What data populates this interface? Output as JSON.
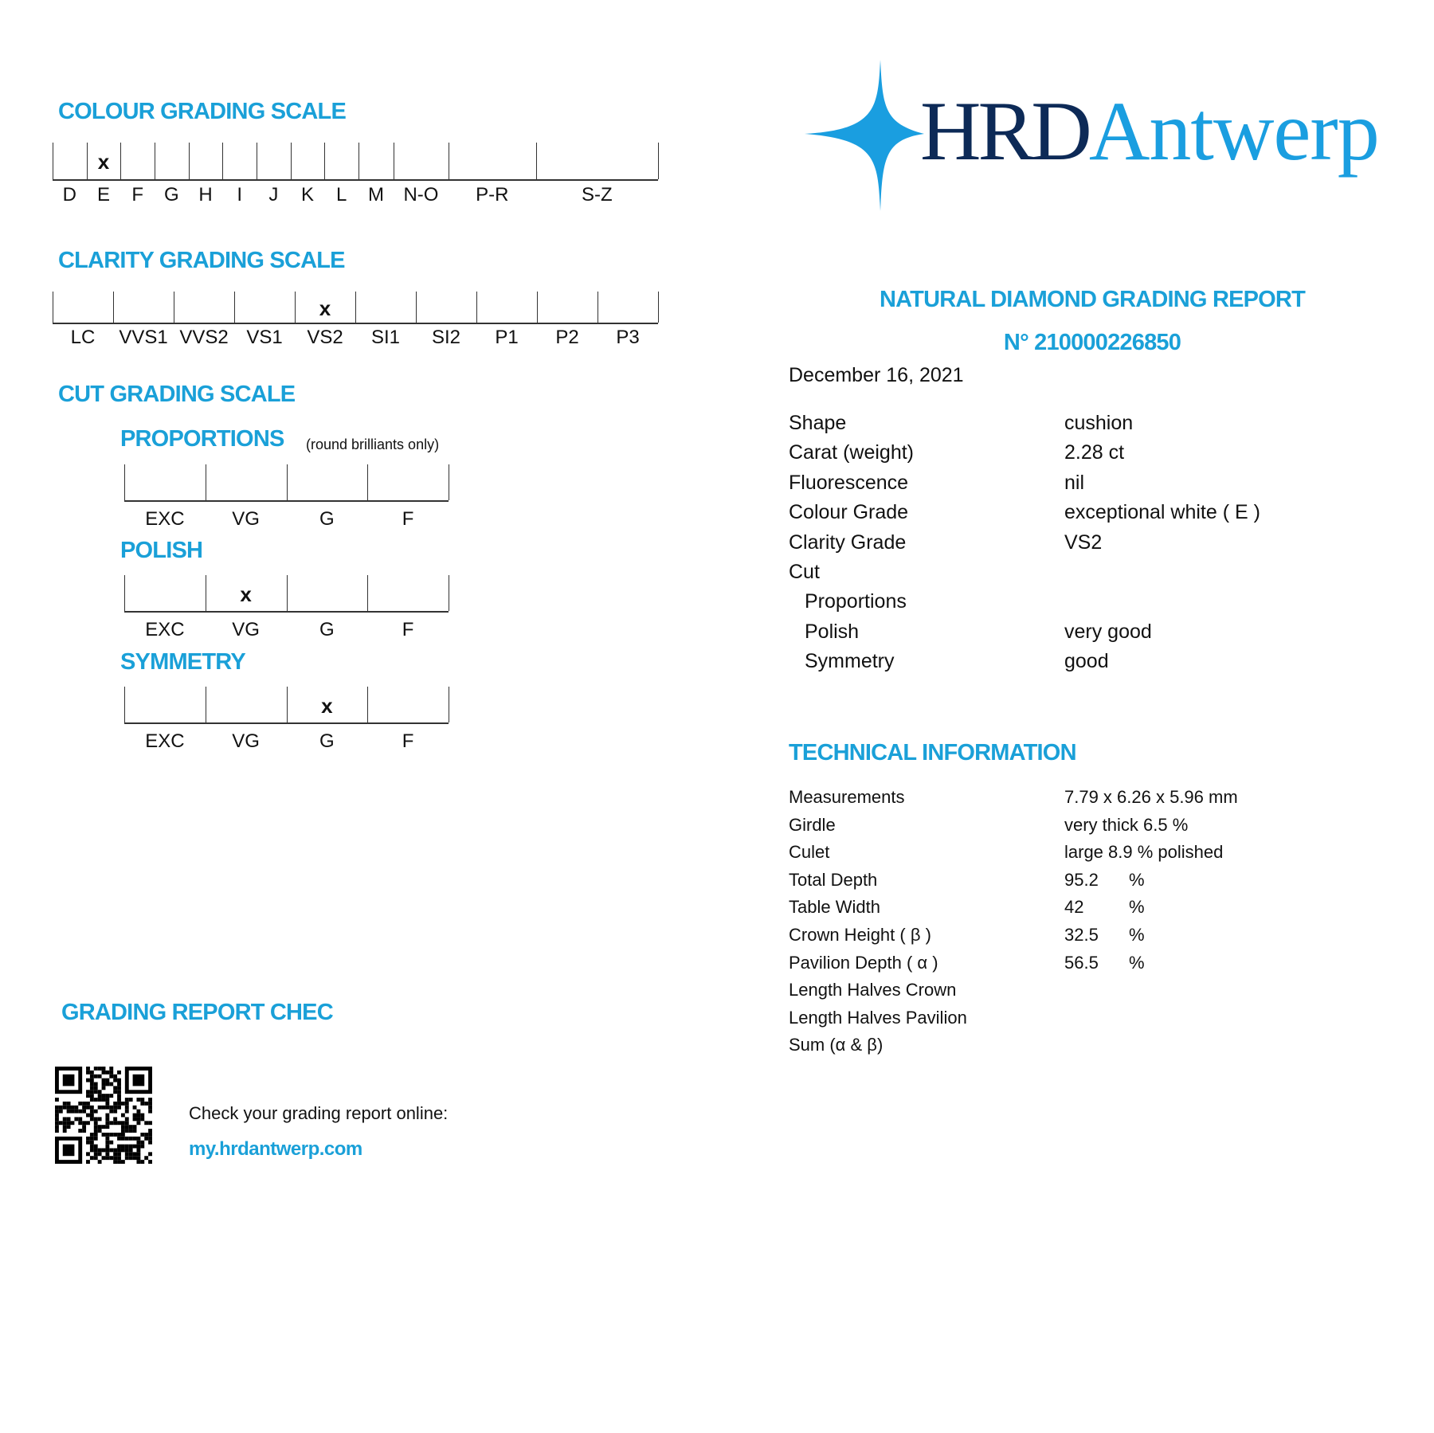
{
  "colour_scale": {
    "title": "COLOUR GRADING SCALE",
    "grades": [
      "D",
      "E",
      "F",
      "G",
      "H",
      "I",
      "J",
      "K",
      "L",
      "M",
      "N-O",
      "P-R",
      "S-Z"
    ],
    "selected": "E",
    "mark": "x"
  },
  "clarity_scale": {
    "title": "CLARITY GRADING SCALE",
    "grades": [
      "LC",
      "VVS1",
      "VVS2",
      "VS1",
      "VS2",
      "SI1",
      "SI2",
      "P1",
      "P2",
      "P3"
    ],
    "selected": "VS2",
    "mark": "x"
  },
  "cut_scale": {
    "title": "CUT GRADING SCALE",
    "proportions": {
      "title": "PROPORTIONS",
      "note": "(round brilliants only)",
      "grades": [
        "EXC",
        "VG",
        "G",
        "F"
      ],
      "selected": null
    },
    "polish": {
      "title": "POLISH",
      "grades": [
        "EXC",
        "VG",
        "G",
        "F"
      ],
      "selected": "VG"
    },
    "symmetry": {
      "title": "SYMMETRY",
      "grades": [
        "EXC",
        "VG",
        "G",
        "F"
      ],
      "selected": "G"
    },
    "mark": "x"
  },
  "check": {
    "title": "GRADING REPORT CHEC",
    "text": "Check your grading report online:",
    "link": "my.hrdantwerp.com"
  },
  "logo": {
    "part1": "HRD",
    "part2": "Antwerp",
    "colors": {
      "dark": "#0d2a57",
      "light": "#1a9ee0"
    }
  },
  "report": {
    "title": "NATURAL DIAMOND GRADING REPORT",
    "number": "N° 210000226850",
    "date": "December 16, 2021",
    "rows": [
      {
        "label": "Shape",
        "value": "cushion",
        "indent": false
      },
      {
        "label": "Carat (weight)",
        "value": "2.28 ct",
        "indent": false
      },
      {
        "label": "Fluorescence",
        "value": "nil",
        "indent": false
      },
      {
        "label": "Colour Grade",
        "value": "exceptional white ( E )",
        "indent": false
      },
      {
        "label": "Clarity Grade",
        "value": "VS2",
        "indent": false
      },
      {
        "label": "Cut",
        "value": "",
        "indent": false
      },
      {
        "label": "Proportions",
        "value": "",
        "indent": true
      },
      {
        "label": "Polish",
        "value": "very good",
        "indent": true
      },
      {
        "label": "Symmetry",
        "value": "good",
        "indent": true
      }
    ]
  },
  "technical": {
    "title": "TECHNICAL INFORMATION",
    "rows": [
      {
        "label": "Measurements",
        "value": "7.79 x 6.26 x 5.96 mm",
        "unit": ""
      },
      {
        "label": "Girdle",
        "value": "very thick 6.5 %",
        "unit": ""
      },
      {
        "label": "Culet",
        "value": "large 8.9 % polished",
        "unit": ""
      },
      {
        "label": "Total Depth",
        "value": "95.2",
        "unit": "%"
      },
      {
        "label": "Table Width",
        "value": "42",
        "unit": "%"
      },
      {
        "label": "Crown Height ( β )",
        "value": "32.5",
        "unit": "%"
      },
      {
        "label": "Pavilion Depth ( α )",
        "value": "56.5",
        "unit": "%"
      },
      {
        "label": "Length Halves Crown",
        "value": "",
        "unit": ""
      },
      {
        "label": "Length Halves Pavilion",
        "value": "",
        "unit": ""
      },
      {
        "label": "Sum  (α & β)",
        "value": "",
        "unit": ""
      }
    ]
  },
  "colors": {
    "accent": "#1aa0d8",
    "text": "#111111"
  }
}
